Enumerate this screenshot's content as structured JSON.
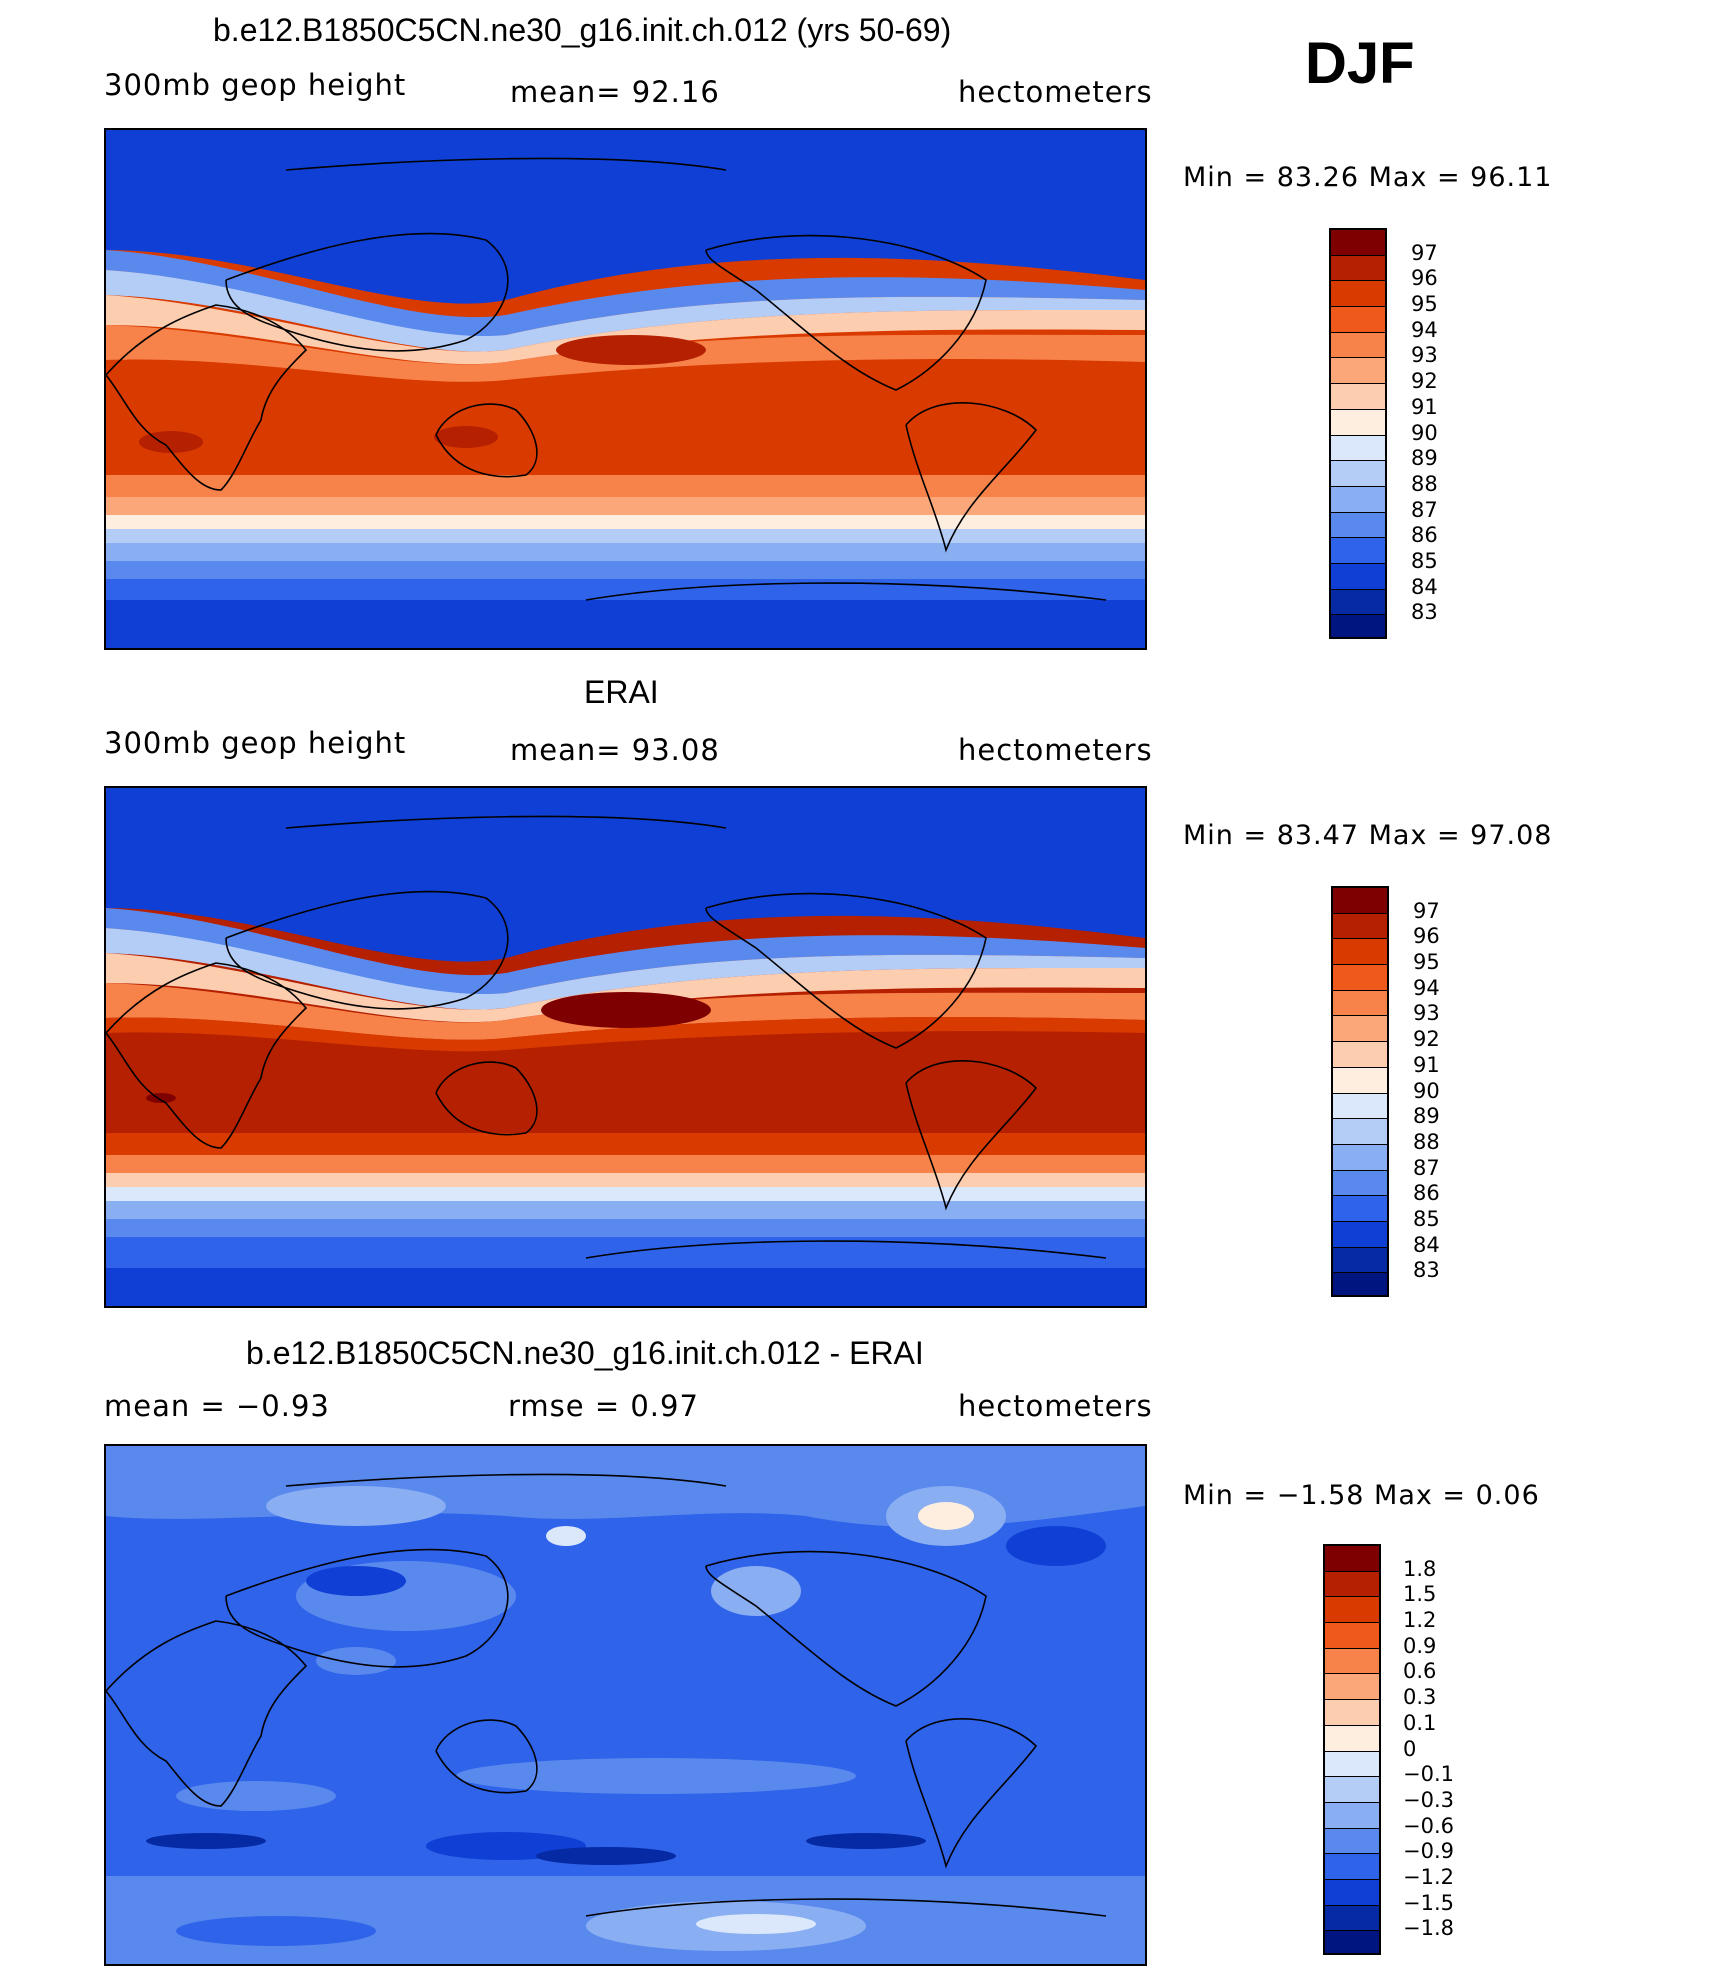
{
  "season": "DJF",
  "panels": [
    {
      "title": "b.e12.B1850C5CN.ne30_g16.init.ch.012 (yrs 50-69)",
      "left_label": "300mb geop height",
      "mid_label": "mean=  92.16",
      "right_label": "hectometers",
      "min_max": "Min =   83.26  Max =   96.11"
    },
    {
      "title": "ERAI",
      "left_label": "300mb geop height",
      "mid_label": "mean=  93.08",
      "right_label": "hectometers",
      "min_max": "Min =   83.47  Max =   97.08"
    },
    {
      "title": "b.e12.B1850C5CN.ne30_g16.init.ch.012 - ERAI",
      "left_label": "mean =   −0.93",
      "mid_label": "rmse =    0.97",
      "right_label": "hectometers",
      "min_max": "Min =   −1.58  Max =    0.06"
    }
  ],
  "legend_levels": {
    "height": [
      "97",
      "96",
      "95",
      "94",
      "93",
      "92",
      "91",
      "90",
      "89",
      "88",
      "87",
      "86",
      "85",
      "84",
      "83"
    ],
    "diff": [
      "1.8",
      "1.5",
      "1.2",
      "0.9",
      "0.6",
      "0.3",
      "0.1",
      "0",
      "−0.1",
      "−0.3",
      "−0.6",
      "−0.9",
      "−1.2",
      "−1.5",
      "−1.8"
    ]
  },
  "legend_colors": [
    "#7f0000",
    "#b52000",
    "#d93a00",
    "#ef5a1c",
    "#f7834a",
    "#fba77a",
    "#fdcdb0",
    "#fdeee0",
    "#dbe8fb",
    "#b4cdf7",
    "#8aaef2",
    "#5a89ee",
    "#2e63ea",
    "#0f3fd4",
    "#062aa3",
    "#001580"
  ]
}
